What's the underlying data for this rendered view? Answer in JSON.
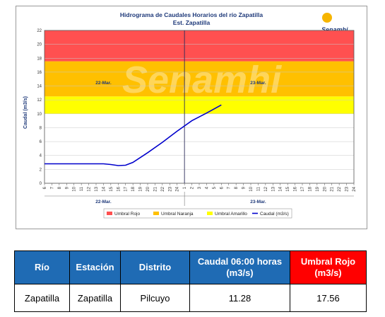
{
  "chart_data": {
    "type": "line",
    "title": "Hidrograma de Caudales Horarios del río Zapatilla",
    "subtitle": "Est. Zapatilla",
    "ylabel": "Caudal  (m3/s)",
    "ylim": [
      0,
      22
    ],
    "yticks": [
      0,
      2,
      4,
      6,
      8,
      10,
      12,
      14,
      16,
      18,
      20,
      22
    ],
    "xticks": [
      "6",
      "7",
      "8",
      "9",
      "10",
      "11",
      "12",
      "13",
      "14",
      "15",
      "16",
      "17",
      "18",
      "19",
      "20",
      "21",
      "22",
      "23",
      "24",
      "1",
      "2",
      "3",
      "4",
      "5",
      "6",
      "7",
      "8",
      "9",
      "10",
      "11",
      "12",
      "13",
      "14",
      "15",
      "16",
      "17",
      "18",
      "19",
      "20",
      "21",
      "22",
      "23",
      "24"
    ],
    "day_labels": [
      {
        "label": "22-Mar.",
        "tick_index": 8
      },
      {
        "label": "23-Mar.",
        "tick_index": 29
      }
    ],
    "thresholds": [
      {
        "name": "Umbral Amarillo",
        "from": 10,
        "to": 12.5,
        "color": "#ffff00"
      },
      {
        "name": "Umbral Naranja",
        "from": 12.5,
        "to": 17.56,
        "color": "#ffc000"
      },
      {
        "name": "Umbral Rojo",
        "from": 17.56,
        "to": 22,
        "color": "#ff5050"
      }
    ],
    "series": [
      {
        "name": "Caudal (m3/s)",
        "color": "#0000cc",
        "points": [
          [
            0,
            2.8
          ],
          [
            6,
            2.8
          ],
          [
            8,
            2.8
          ],
          [
            9,
            2.7
          ],
          [
            10,
            2.55
          ],
          [
            11,
            2.6
          ],
          [
            12,
            3.0
          ],
          [
            14,
            4.4
          ],
          [
            16,
            5.9
          ],
          [
            18,
            7.5
          ],
          [
            20,
            9.0
          ],
          [
            22,
            10.1
          ],
          [
            24,
            11.28
          ]
        ]
      }
    ],
    "legend": [
      "Umbral Rojo",
      "Umbral Naranja",
      "Umbral Amarillo",
      "Caudal (m3/s)"
    ],
    "legend_position": "bottom"
  },
  "logo_text": "Senamhi",
  "watermark_text": "Senamhi",
  "table": {
    "headers": [
      "Río",
      "Estación",
      "Distrito",
      "Caudal 06:00 horas (m3/s)",
      "Umbral Rojo (m3/s)"
    ],
    "row": [
      "Zapatilla",
      "Zapatilla",
      "Pilcuyo",
      "11.28",
      "17.56"
    ]
  },
  "colors": {
    "header_blue": "#1f6bb4",
    "header_red": "#ff0000",
    "line": "#0000cc"
  }
}
